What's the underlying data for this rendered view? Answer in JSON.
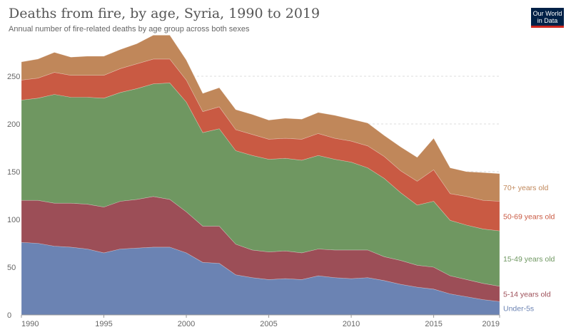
{
  "header": {
    "title": "Deaths from fire, by age, Syria, 1990 to 2019",
    "subtitle": "Annual number of fire-related deaths by age group across both sexes",
    "logo_line1": "Our World",
    "logo_line2": "in Data"
  },
  "chart_data": {
    "type": "area",
    "stacked": true,
    "title": "Deaths from fire, by age, Syria, 1990 to 2019",
    "subtitle": "Annual number of fire-related deaths by age group across both sexes",
    "x": [
      1990,
      1991,
      1992,
      1993,
      1994,
      1995,
      1996,
      1997,
      1998,
      1999,
      2000,
      2001,
      2002,
      2003,
      2004,
      2005,
      2006,
      2007,
      2008,
      2009,
      2010,
      2011,
      2012,
      2013,
      2014,
      2015,
      2016,
      2017,
      2018,
      2019
    ],
    "x_ticks": [
      1990,
      1995,
      2000,
      2005,
      2010,
      2015,
      2019
    ],
    "y_ticks": [
      0,
      50,
      100,
      150,
      200,
      250
    ],
    "ylim": [
      0,
      300
    ],
    "xlim": [
      1990,
      2019
    ],
    "grid": true,
    "legend_placement": "right",
    "series": [
      {
        "name": "Under-5s",
        "color": "#6b83b3",
        "values": [
          76,
          75,
          72,
          71,
          69,
          65,
          69,
          70,
          71,
          71,
          65,
          55,
          54,
          42,
          39,
          37,
          38,
          37,
          41,
          39,
          38,
          39,
          36,
          32,
          29,
          27,
          22,
          19,
          16,
          14
        ]
      },
      {
        "name": "5-14 years old",
        "color": "#9c4e57",
        "values": [
          44,
          45,
          45,
          46,
          47,
          48,
          50,
          51,
          53,
          50,
          43,
          38,
          39,
          32,
          29,
          29,
          29,
          28,
          28,
          29,
          30,
          29,
          25,
          25,
          23,
          23,
          19,
          18,
          17,
          16
        ]
      },
      {
        "name": "15-49 years old",
        "color": "#6f9761",
        "values": [
          105,
          107,
          114,
          111,
          112,
          114,
          114,
          116,
          118,
          122,
          115,
          98,
          102,
          98,
          99,
          97,
          97,
          97,
          98,
          95,
          92,
          86,
          82,
          71,
          63,
          69,
          58,
          57,
          57,
          58
        ]
      },
      {
        "name": "50-69 years old",
        "color": "#c95a43",
        "values": [
          21,
          21,
          23,
          23,
          23,
          24,
          25,
          26,
          26,
          25,
          23,
          22,
          23,
          22,
          22,
          21,
          21,
          22,
          23,
          22,
          22,
          23,
          23,
          23,
          25,
          33,
          28,
          30,
          30,
          31
        ]
      },
      {
        "name": "70+ years old",
        "color": "#c0875a",
        "values": [
          19,
          20,
          21,
          19,
          20,
          20,
          20,
          21,
          25,
          25,
          21,
          19,
          20,
          21,
          21,
          20,
          21,
          21,
          22,
          24,
          23,
          24,
          22,
          25,
          25,
          33,
          27,
          26,
          29,
          29
        ]
      }
    ]
  }
}
